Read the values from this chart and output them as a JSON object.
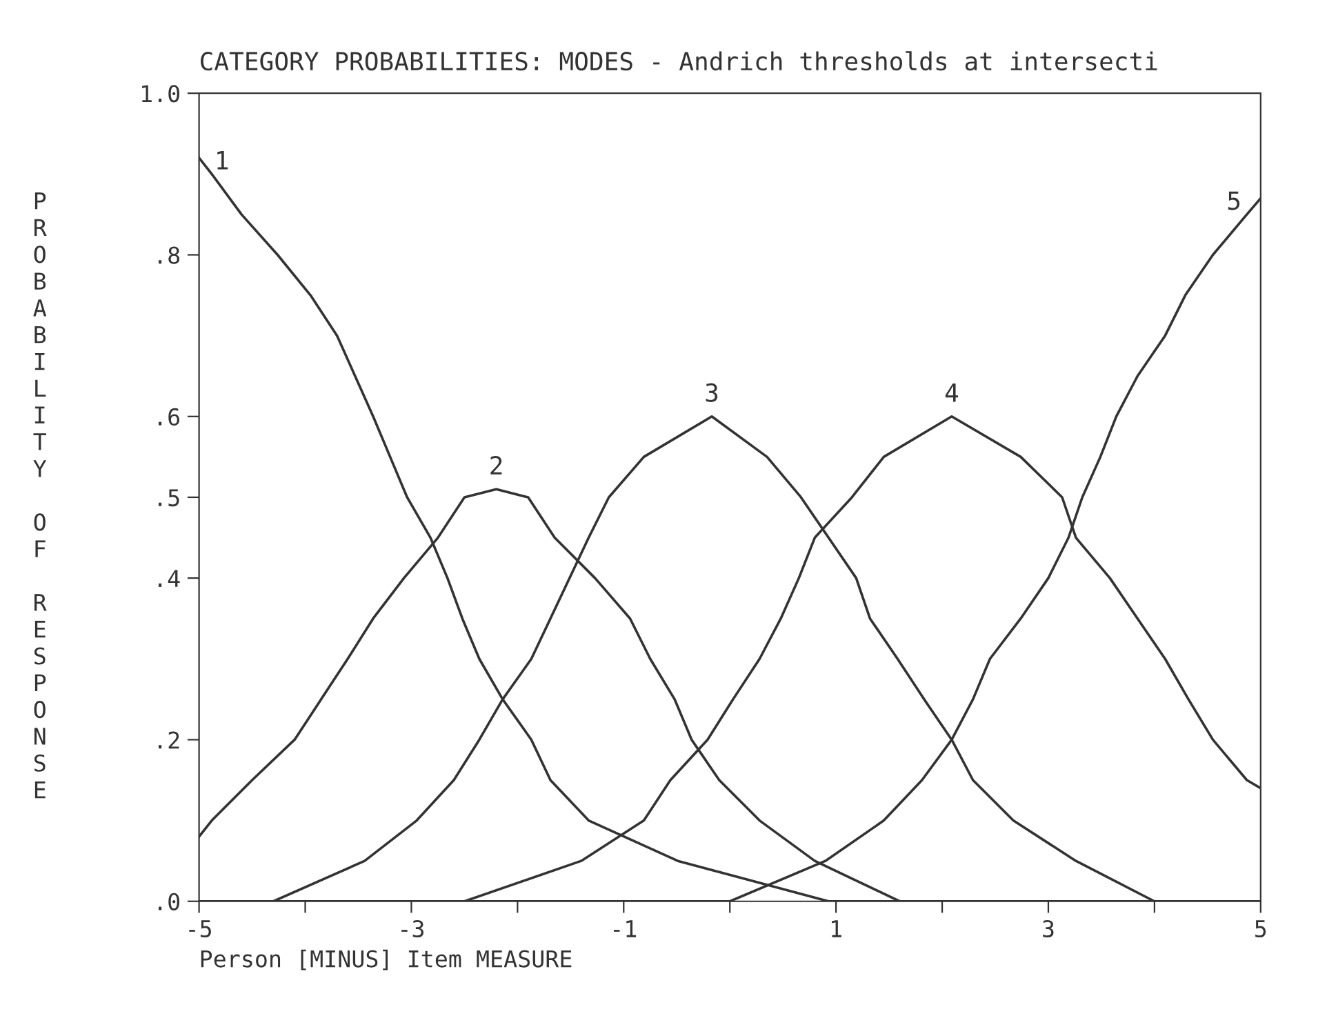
{
  "chart_data": {
    "type": "line",
    "title": "CATEGORY PROBABILITIES: MODES - Andrich thresholds at intersecti",
    "xlabel": "Person [MINUS] Item MEASURE",
    "ylabel": "PROBABILITY OF RESPONSE",
    "xlim": [
      -5,
      5
    ],
    "ylim": [
      0,
      1
    ],
    "xticks": [
      -5,
      {
        "value": -4,
        "label": null
      },
      -3,
      {
        "value": -2,
        "label": null
      },
      -1,
      {
        "value": 0,
        "label": null
      },
      1,
      {
        "value": 2,
        "label": null
      },
      3,
      {
        "value": 4,
        "label": null
      },
      5
    ],
    "yticks": [
      {
        "value": 0,
        "label": ".0"
      },
      {
        "value": 0.2,
        "label": ".2"
      },
      {
        "value": 0.4,
        "label": ".4"
      },
      {
        "value": 0.5,
        "label": ".5"
      },
      {
        "value": 0.6,
        "label": ".6"
      },
      {
        "value": 0.8,
        "label": ".8"
      },
      {
        "value": 1.0,
        "label": "1.0"
      }
    ],
    "grid": false,
    "legend": false,
    "marker": "none",
    "line_style": "solid",
    "series": [
      {
        "name": "1",
        "color": "#333333",
        "x": [
          -5,
          -4.88,
          -4.6,
          -4.26,
          -3.95,
          -3.7,
          -3.53,
          -3.36,
          -3.2,
          -3.04,
          -2.82,
          -2.66,
          -2.52,
          -2.36,
          -2.14,
          -1.87,
          -1.69,
          -1.33,
          -0.49,
          0.93,
          5
        ],
        "values": [
          0.92,
          0.9,
          0.85,
          0.8,
          0.75,
          0.7,
          0.65,
          0.6,
          0.55,
          0.5,
          0.45,
          0.4,
          0.35,
          0.3,
          0.25,
          0.2,
          0.15,
          0.1,
          0.05,
          0.0,
          0.0
        ]
      },
      {
        "name": "2",
        "color": "#333333",
        "x": [
          -5,
          -4.88,
          -4.5,
          -4.1,
          -3.85,
          -3.6,
          -3.36,
          -3.07,
          -2.75,
          -2.5,
          -2.2,
          -1.9,
          -1.65,
          -1.27,
          -0.94,
          -0.75,
          -0.52,
          -0.36,
          -0.1,
          0.28,
          0.8,
          1.6,
          5
        ],
        "values": [
          0.08,
          0.1,
          0.15,
          0.2,
          0.25,
          0.3,
          0.35,
          0.4,
          0.45,
          0.5,
          0.51,
          0.5,
          0.45,
          0.4,
          0.35,
          0.3,
          0.25,
          0.2,
          0.15,
          0.1,
          0.05,
          0.0,
          0.0
        ]
      },
      {
        "name": "3",
        "color": "#333333",
        "x": [
          -5,
          -4.3,
          -3.44,
          -2.95,
          -2.6,
          -2.36,
          -2.14,
          -1.87,
          -1.69,
          -1.33,
          -1.14,
          -0.81,
          -0.17,
          0.35,
          0.67,
          0.93,
          1.19,
          1.32,
          1.58,
          1.83,
          2.09,
          2.29,
          2.67,
          3.26,
          4.0,
          5
        ],
        "values": [
          0.0,
          0.0,
          0.05,
          0.1,
          0.15,
          0.2,
          0.25,
          0.3,
          0.35,
          0.45,
          0.5,
          0.55,
          0.6,
          0.55,
          0.5,
          0.45,
          0.4,
          0.35,
          0.3,
          0.25,
          0.2,
          0.15,
          0.1,
          0.05,
          0.0,
          0.0
        ]
      },
      {
        "name": "4",
        "color": "#333333",
        "x": [
          -5,
          -2.5,
          -1.4,
          -0.81,
          -0.56,
          -0.21,
          0.03,
          0.28,
          0.48,
          0.65,
          0.8,
          1.15,
          1.45,
          2.09,
          2.74,
          3.13,
          3.26,
          3.58,
          3.84,
          4.1,
          4.32,
          4.55,
          4.87,
          5
        ],
        "values": [
          0.0,
          0.0,
          0.05,
          0.1,
          0.15,
          0.2,
          0.25,
          0.3,
          0.35,
          0.4,
          0.45,
          0.5,
          0.55,
          0.6,
          0.55,
          0.5,
          0.45,
          0.4,
          0.35,
          0.3,
          0.25,
          0.2,
          0.15,
          0.14
        ]
      },
      {
        "name": "5",
        "color": "#333333",
        "x": [
          -5,
          0.0,
          0.9,
          1.45,
          1.81,
          2.09,
          2.29,
          2.45,
          2.74,
          3.0,
          3.19,
          3.32,
          3.49,
          3.64,
          3.84,
          4.1,
          4.29,
          4.55,
          4.87,
          5
        ],
        "values": [
          0.0,
          0.0,
          0.05,
          0.1,
          0.15,
          0.2,
          0.25,
          0.3,
          0.35,
          0.4,
          0.45,
          0.5,
          0.55,
          0.6,
          0.65,
          0.7,
          0.75,
          0.8,
          0.85,
          0.87
        ]
      }
    ]
  }
}
